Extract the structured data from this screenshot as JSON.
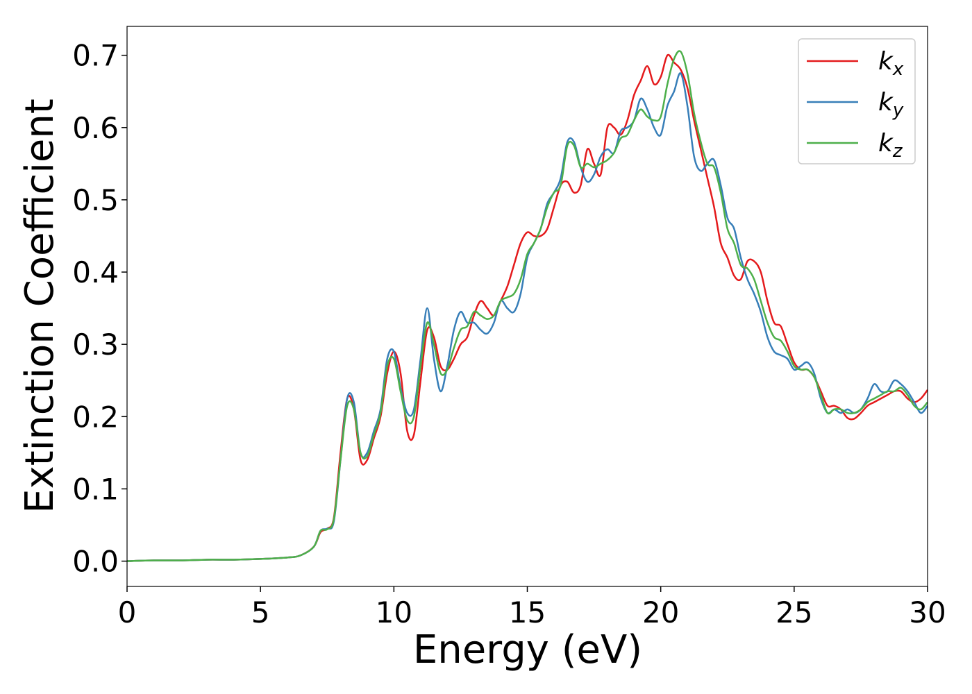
{
  "chart_data": {
    "type": "line",
    "xlabel": "Energy (eV)",
    "ylabel": "Extinction Coefficient",
    "x": [
      0,
      1,
      2,
      3,
      4,
      5,
      6,
      6.5,
      7,
      7.25,
      7.5,
      7.75,
      8,
      8.25,
      8.5,
      8.75,
      9,
      9.25,
      9.5,
      9.75,
      10,
      10.25,
      10.5,
      10.75,
      11,
      11.25,
      11.5,
      11.75,
      12,
      12.25,
      12.5,
      12.75,
      13,
      13.25,
      13.5,
      13.75,
      14,
      14.25,
      14.5,
      14.75,
      15,
      15.25,
      15.5,
      15.75,
      16,
      16.25,
      16.5,
      16.75,
      17,
      17.25,
      17.5,
      17.75,
      18,
      18.25,
      18.5,
      18.75,
      19,
      19.25,
      19.5,
      19.75,
      20,
      20.25,
      20.5,
      20.75,
      21,
      21.25,
      21.5,
      21.75,
      22,
      22.25,
      22.5,
      22.75,
      23,
      23.25,
      23.5,
      23.75,
      24,
      24.25,
      24.5,
      24.75,
      25,
      25.25,
      25.5,
      25.75,
      26,
      26.25,
      26.5,
      26.75,
      27,
      27.25,
      27.5,
      27.75,
      28,
      28.25,
      28.5,
      28.75,
      29,
      29.25,
      29.5,
      29.75,
      30
    ],
    "series": [
      {
        "name": "kx",
        "color": "#e41a1c",
        "values": [
          0,
          0.001,
          0.001,
          0.002,
          0.002,
          0.003,
          0.005,
          0.008,
          0.02,
          0.04,
          0.045,
          0.06,
          0.15,
          0.225,
          0.21,
          0.14,
          0.14,
          0.17,
          0.2,
          0.26,
          0.29,
          0.26,
          0.18,
          0.175,
          0.25,
          0.32,
          0.31,
          0.27,
          0.265,
          0.28,
          0.3,
          0.31,
          0.34,
          0.36,
          0.35,
          0.34,
          0.36,
          0.38,
          0.41,
          0.44,
          0.455,
          0.45,
          0.45,
          0.46,
          0.49,
          0.52,
          0.525,
          0.51,
          0.52,
          0.57,
          0.55,
          0.535,
          0.6,
          0.6,
          0.59,
          0.61,
          0.645,
          0.665,
          0.685,
          0.66,
          0.67,
          0.7,
          0.69,
          0.68,
          0.655,
          0.61,
          0.57,
          0.53,
          0.49,
          0.44,
          0.42,
          0.395,
          0.39,
          0.415,
          0.415,
          0.4,
          0.36,
          0.33,
          0.325,
          0.3,
          0.275,
          0.265,
          0.265,
          0.255,
          0.235,
          0.215,
          0.215,
          0.21,
          0.198,
          0.197,
          0.205,
          0.215,
          0.22,
          0.225,
          0.23,
          0.235,
          0.235,
          0.225,
          0.22,
          0.225,
          0.237
        ]
      },
      {
        "name": "ky",
        "color": "#377eb8",
        "values": [
          0,
          0.001,
          0.001,
          0.002,
          0.002,
          0.003,
          0.005,
          0.008,
          0.02,
          0.042,
          0.045,
          0.055,
          0.14,
          0.225,
          0.22,
          0.15,
          0.15,
          0.18,
          0.21,
          0.28,
          0.29,
          0.24,
          0.205,
          0.21,
          0.28,
          0.35,
          0.28,
          0.235,
          0.27,
          0.32,
          0.345,
          0.33,
          0.33,
          0.32,
          0.315,
          0.33,
          0.36,
          0.35,
          0.345,
          0.37,
          0.42,
          0.44,
          0.46,
          0.495,
          0.51,
          0.53,
          0.58,
          0.58,
          0.545,
          0.525,
          0.535,
          0.56,
          0.57,
          0.565,
          0.595,
          0.6,
          0.61,
          0.64,
          0.625,
          0.6,
          0.59,
          0.63,
          0.65,
          0.675,
          0.63,
          0.56,
          0.54,
          0.55,
          0.555,
          0.52,
          0.475,
          0.46,
          0.42,
          0.39,
          0.37,
          0.345,
          0.31,
          0.29,
          0.285,
          0.28,
          0.265,
          0.27,
          0.275,
          0.26,
          0.225,
          0.205,
          0.21,
          0.205,
          0.21,
          0.205,
          0.21,
          0.225,
          0.245,
          0.235,
          0.235,
          0.25,
          0.245,
          0.235,
          0.22,
          0.205,
          0.215
        ]
      },
      {
        "name": "kz",
        "color": "#4daf4a",
        "values": [
          0,
          0.001,
          0.001,
          0.002,
          0.002,
          0.003,
          0.005,
          0.008,
          0.02,
          0.042,
          0.044,
          0.058,
          0.14,
          0.215,
          0.21,
          0.15,
          0.145,
          0.175,
          0.205,
          0.27,
          0.28,
          0.235,
          0.195,
          0.2,
          0.27,
          0.33,
          0.3,
          0.26,
          0.265,
          0.295,
          0.32,
          0.325,
          0.345,
          0.34,
          0.335,
          0.34,
          0.36,
          0.365,
          0.37,
          0.39,
          0.425,
          0.44,
          0.46,
          0.49,
          0.51,
          0.52,
          0.575,
          0.575,
          0.545,
          0.55,
          0.545,
          0.55,
          0.555,
          0.565,
          0.585,
          0.59,
          0.61,
          0.625,
          0.615,
          0.61,
          0.615,
          0.66,
          0.695,
          0.705,
          0.675,
          0.62,
          0.58,
          0.55,
          0.545,
          0.51,
          0.46,
          0.44,
          0.41,
          0.405,
          0.39,
          0.36,
          0.33,
          0.31,
          0.305,
          0.29,
          0.27,
          0.265,
          0.265,
          0.255,
          0.23,
          0.205,
          0.21,
          0.21,
          0.205,
          0.205,
          0.21,
          0.22,
          0.225,
          0.23,
          0.235,
          0.235,
          0.24,
          0.23,
          0.215,
          0.21,
          0.22
        ]
      }
    ],
    "xlim": [
      0,
      30
    ],
    "xticks": [
      0,
      5,
      10,
      15,
      20,
      25,
      30
    ],
    "ylim": [
      -0.035,
      0.74
    ],
    "yticks": [
      {
        "value": 0,
        "label": "0.0"
      },
      0.1,
      0.2,
      0.3,
      0.4,
      0.5,
      0.6,
      0.7
    ],
    "grid": false,
    "legend": "upper right"
  }
}
